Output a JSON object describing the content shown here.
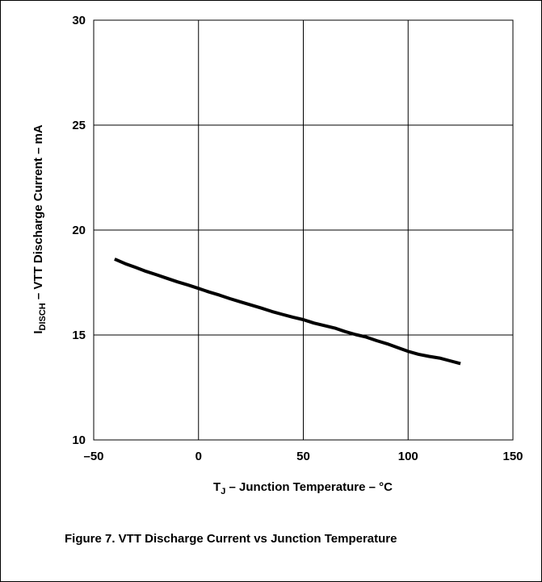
{
  "figure_caption": "Figure 7. VTT Discharge Current vs Junction Temperature",
  "chart_data": {
    "type": "line",
    "title": "",
    "xlabel": {
      "main": "T",
      "subscript": "J",
      "rest": " – Junction Temperature – °C"
    },
    "ylabel": {
      "main": "I",
      "subscript": "DISCH",
      "rest": " – VTT Discharge Current – mA"
    },
    "xlim": [
      -50,
      150
    ],
    "ylim": [
      10,
      30
    ],
    "x_ticks": [
      "–50",
      "0",
      "50",
      "100",
      "150"
    ],
    "y_ticks": [
      "10",
      "15",
      "20",
      "25",
      "30"
    ],
    "x_tick_values": [
      -50,
      0,
      50,
      100,
      150
    ],
    "y_tick_values": [
      10,
      15,
      20,
      25,
      30
    ],
    "grid": true,
    "series": [
      {
        "color": "#000000",
        "points": [
          [
            -40,
            18.62
          ],
          [
            -35,
            18.4
          ],
          [
            -30,
            18.22
          ],
          [
            -25,
            18.03
          ],
          [
            -20,
            17.87
          ],
          [
            -15,
            17.7
          ],
          [
            -10,
            17.53
          ],
          [
            -5,
            17.38
          ],
          [
            0,
            17.22
          ],
          [
            5,
            17.05
          ],
          [
            10,
            16.9
          ],
          [
            15,
            16.73
          ],
          [
            20,
            16.58
          ],
          [
            25,
            16.43
          ],
          [
            30,
            16.28
          ],
          [
            35,
            16.12
          ],
          [
            40,
            15.98
          ],
          [
            45,
            15.85
          ],
          [
            50,
            15.73
          ],
          [
            55,
            15.57
          ],
          [
            60,
            15.45
          ],
          [
            65,
            15.33
          ],
          [
            70,
            15.16
          ],
          [
            75,
            15.02
          ],
          [
            80,
            14.9
          ],
          [
            85,
            14.73
          ],
          [
            90,
            14.58
          ],
          [
            95,
            14.4
          ],
          [
            100,
            14.22
          ],
          [
            105,
            14.08
          ],
          [
            110,
            13.98
          ],
          [
            115,
            13.9
          ],
          [
            120,
            13.77
          ],
          [
            125,
            13.64
          ]
        ]
      }
    ]
  }
}
